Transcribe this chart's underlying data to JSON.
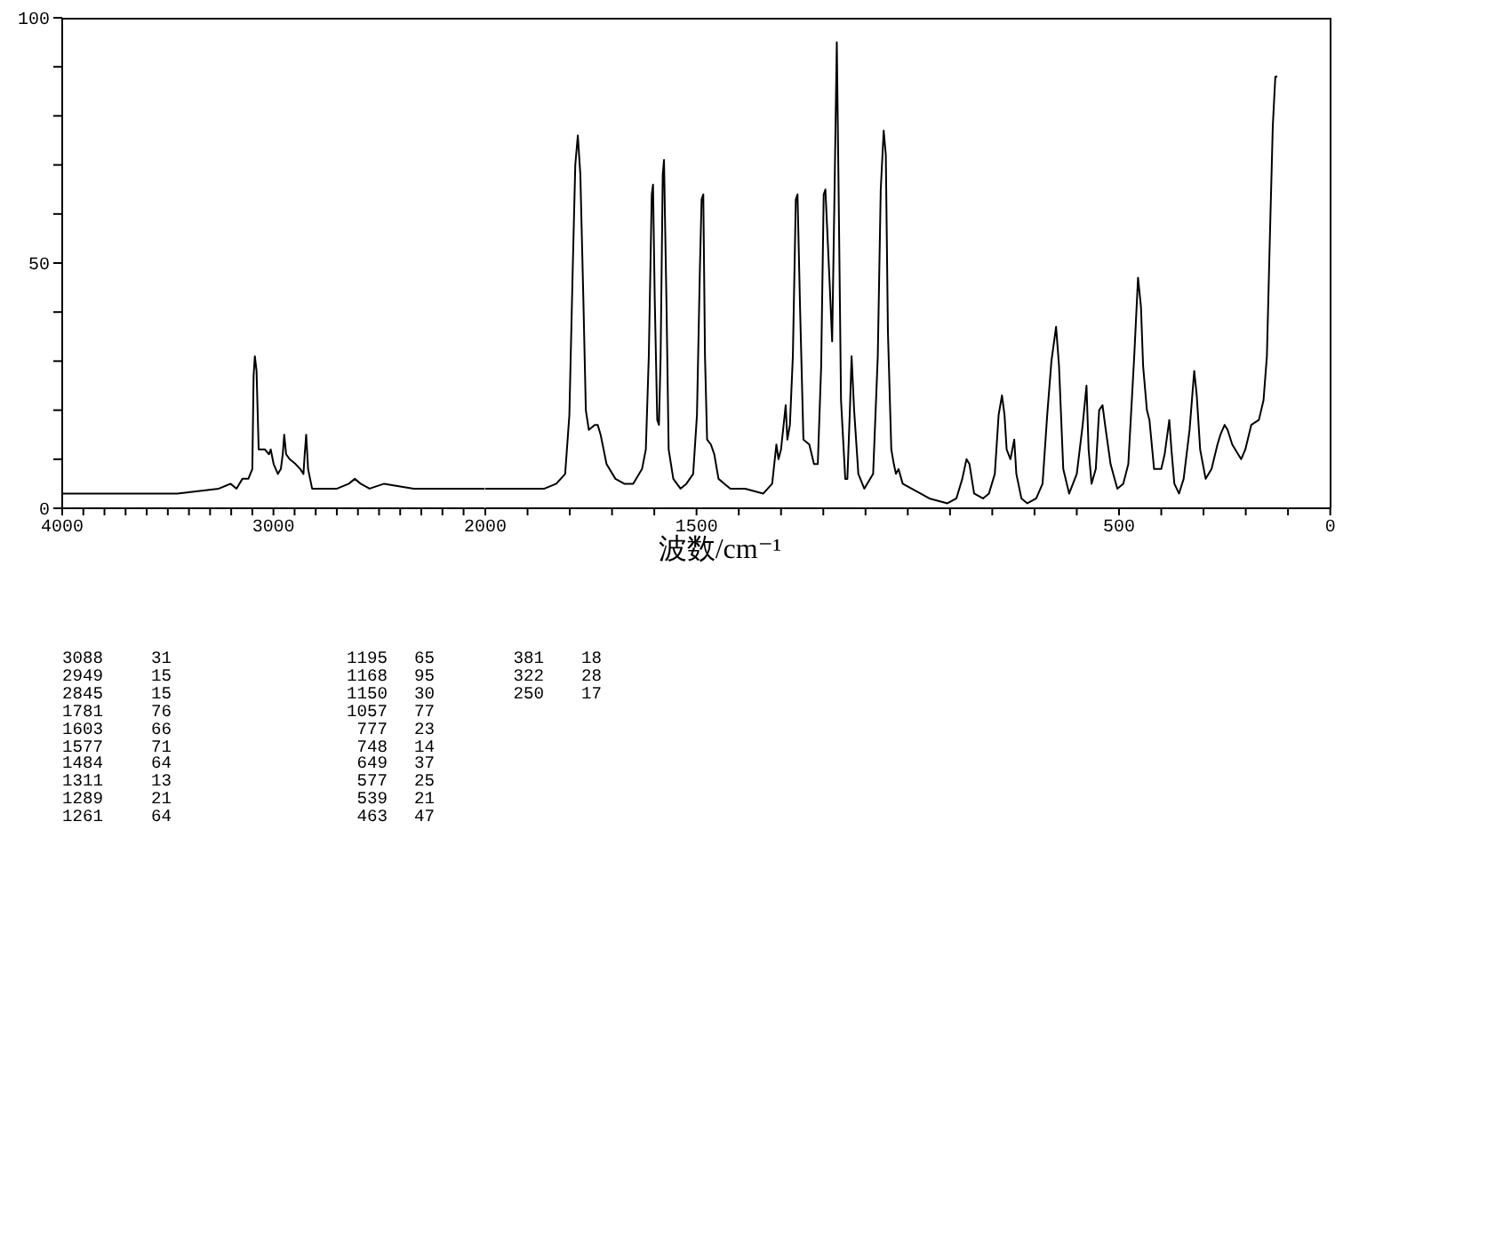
{
  "chart_data": [
    {
      "type": "line",
      "color": "#000000",
      "x": [
        4000,
        3800,
        3600,
        3455,
        3259,
        3203,
        3175,
        3147,
        3119,
        3100,
        3094,
        3088,
        3080,
        3070,
        3041,
        3021,
        3013,
        2999,
        2979,
        2965,
        2956,
        2949,
        2940,
        2923,
        2895,
        2873,
        2858,
        2852,
        2845,
        2836,
        2817,
        2727,
        2699,
        2643,
        2615,
        2587,
        2545,
        2476,
        2336,
        2200,
        2056,
        2000
      ],
      "values": [
        3,
        3,
        3,
        3,
        4,
        5,
        4,
        6,
        6,
        8,
        27,
        31,
        28,
        12,
        12,
        11,
        12,
        9,
        7,
        8,
        11,
        15,
        11,
        10,
        9,
        8,
        7,
        11,
        15,
        8,
        4,
        4,
        4,
        5,
        6,
        5,
        4,
        5,
        4,
        4,
        4,
        4
      ],
      "xlim": [
        4000,
        2000
      ],
      "ylim": [
        0,
        100
      ],
      "xticks": [
        4000,
        {
          "value": 3900,
          "label": null
        },
        {
          "value": 3800,
          "label": null
        },
        {
          "value": 3700,
          "label": null
        },
        {
          "value": 3600,
          "label": null
        },
        {
          "value": 3500,
          "label": null
        },
        {
          "value": 3400,
          "label": null
        },
        {
          "value": 3300,
          "label": null
        },
        {
          "value": 3200,
          "label": null
        },
        {
          "value": 3100,
          "label": null
        },
        3000,
        {
          "value": 2900,
          "label": null
        },
        {
          "value": 2800,
          "label": null
        },
        {
          "value": 2700,
          "label": null
        },
        {
          "value": 2600,
          "label": null
        },
        {
          "value": 2500,
          "label": null
        },
        {
          "value": 2400,
          "label": null
        },
        {
          "value": 2300,
          "label": null
        },
        {
          "value": 2200,
          "label": null
        },
        {
          "value": 2100,
          "label": null
        }
      ],
      "yticks": [
        0,
        {
          "value": 10,
          "label": null
        },
        {
          "value": 20,
          "label": null
        },
        {
          "value": 30,
          "label": null
        },
        {
          "value": 40,
          "label": null
        },
        50,
        {
          "value": 60,
          "label": null
        },
        {
          "value": 70,
          "label": null
        },
        {
          "value": 80,
          "label": null
        },
        {
          "value": 90,
          "label": null
        },
        100
      ]
    },
    {
      "type": "line",
      "xlabel": "波数/cm⁻¹",
      "color": "#000000",
      "x": [
        2000,
        1888,
        1860,
        1832,
        1811,
        1801,
        1793,
        1787,
        1781,
        1775,
        1768,
        1762,
        1755,
        1741,
        1734,
        1727,
        1713,
        1692,
        1671,
        1650,
        1629,
        1620,
        1613,
        1606,
        1603,
        1599,
        1593,
        1589,
        1585,
        1580,
        1577,
        1571,
        1566,
        1555,
        1538,
        1524,
        1508,
        1499,
        1492,
        1488,
        1484,
        1480,
        1475,
        1466,
        1458,
        1448,
        1434,
        1420,
        1385,
        1342,
        1321,
        1311,
        1306,
        1300,
        1289,
        1285,
        1279,
        1272,
        1265,
        1261,
        1255,
        1247,
        1233,
        1222,
        1213,
        1205,
        1199,
        1195,
        1185,
        1179,
        1174,
        1168,
        1164,
        1158,
        1148,
        1143,
        1137,
        1133,
        1127,
        1117,
        1103,
        1082,
        1071,
        1064,
        1057,
        1052,
        1047,
        1039,
        1033,
        1028,
        1022,
        1012,
        991,
        949,
        906,
        885,
        871,
        861,
        854,
        843,
        822,
        808,
        794,
        785,
        777,
        771,
        766,
        757,
        748,
        743,
        731,
        717,
        696,
        681,
        670,
        660,
        649,
        642,
        632,
        618,
        600,
        586,
        577,
        572,
        565,
        555,
        547,
        539,
        533,
        520,
        504,
        490,
        478,
        464,
        455,
        448,
        443,
        434,
        428,
        417,
        400,
        392,
        381,
        376,
        369,
        358,
        347,
        333,
        322,
        316,
        308,
        295,
        281,
        267,
        260,
        250,
        243,
        232,
        211,
        201,
        187,
        169,
        158,
        150,
        143,
        136,
        130,
        127
      ],
      "values": [
        4,
        4,
        4,
        5,
        7,
        19,
        49,
        70,
        76,
        68,
        43,
        20,
        16,
        17,
        17,
        15,
        9,
        6,
        5,
        5,
        8,
        12,
        31,
        64,
        66,
        43,
        18,
        17,
        31,
        68,
        71,
        41,
        12,
        6,
        4,
        5,
        7,
        19,
        49,
        63,
        64,
        31,
        14,
        13,
        11,
        6,
        5,
        4,
        4,
        3,
        5,
        13,
        10,
        12,
        21,
        14,
        17,
        31,
        63,
        64,
        41,
        14,
        13,
        9,
        9,
        29,
        64,
        65,
        46,
        34,
        61,
        95,
        67,
        22,
        6,
        6,
        20,
        31,
        20,
        7,
        4,
        7,
        31,
        65,
        77,
        72,
        36,
        12,
        9,
        7,
        8,
        5,
        4,
        2,
        1,
        2,
        6,
        10,
        9,
        3,
        2,
        3,
        7,
        19,
        23,
        19,
        12,
        10,
        14,
        7,
        2,
        1,
        2,
        5,
        19,
        30,
        37,
        29,
        8,
        3,
        7,
        17,
        25,
        12,
        5,
        8,
        20,
        21,
        17,
        9,
        4,
        5,
        9,
        31,
        47,
        41,
        29,
        20,
        18,
        8,
        8,
        11,
        18,
        12,
        5,
        3,
        6,
        16,
        28,
        23,
        12,
        6,
        8,
        13,
        15,
        17,
        16,
        13,
        10,
        12,
        17,
        18,
        22,
        31,
        55,
        78,
        88,
        88
      ],
      "xlim": [
        2000,
        0
      ],
      "ylim": [
        0,
        100
      ],
      "tick_labels": "x",
      "xticks": [
        2000,
        {
          "value": 1900,
          "label": null
        },
        {
          "value": 1800,
          "label": null
        },
        {
          "value": 1700,
          "label": null
        },
        {
          "value": 1600,
          "label": null
        },
        1500,
        {
          "value": 1400,
          "label": null
        },
        {
          "value": 1300,
          "label": null
        },
        {
          "value": 1200,
          "label": null
        },
        {
          "value": 1100,
          "label": null
        },
        {
          "value": 1000,
          "label": null
        },
        {
          "value": 900,
          "label": null
        },
        {
          "value": 800,
          "label": null
        },
        {
          "value": 700,
          "label": null
        },
        {
          "value": 600,
          "label": null
        },
        500,
        {
          "value": 400,
          "label": null
        },
        {
          "value": 300,
          "label": null
        },
        {
          "value": 200,
          "label": null
        },
        {
          "value": 100,
          "label": null
        },
        0
      ]
    },
    {
      "type": "other",
      "annotations": [
        "3088",
        "31",
        "2949",
        "15",
        "2845",
        "15",
        "1781",
        "76",
        "1603",
        "66",
        "1577",
        "71",
        "1484",
        "64",
        "1311",
        "13",
        "1289",
        "21",
        "1261",
        "64",
        "1195",
        "65",
        "1168",
        "95",
        "1150",
        "30",
        "1057",
        "77",
        "777",
        "23",
        "748",
        "14",
        "649",
        "37",
        "577",
        "25",
        "539",
        "21",
        "463",
        "47",
        "381",
        "18",
        "322",
        "28",
        "250",
        "17"
      ]
    }
  ]
}
